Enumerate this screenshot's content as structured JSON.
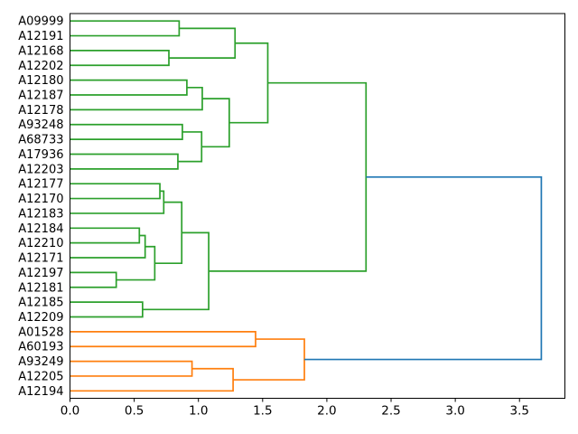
{
  "chart_data": {
    "type": "dendrogram",
    "title": "",
    "orientation": "right",
    "legend": "none",
    "grid": false,
    "leaves": [
      "A09999",
      "A12191",
      "A12168",
      "A12202",
      "A12180",
      "A12187",
      "A12178",
      "A93248",
      "A68733",
      "A17936",
      "A12203",
      "A12177",
      "A12170",
      "A12183",
      "A12184",
      "A12210",
      "A12171",
      "A12197",
      "A12181",
      "A12185",
      "A12209",
      "A01528",
      "A60193",
      "A93249",
      "A12205",
      "A12194"
    ],
    "merges": [
      {
        "id": "M1",
        "a": "L0",
        "b": "L1",
        "height": 0.85,
        "color": "green"
      },
      {
        "id": "M2",
        "a": "L2",
        "b": "L3",
        "height": 0.77,
        "color": "green"
      },
      {
        "id": "M3",
        "a": "M1",
        "b": "M2",
        "height": 1.285,
        "color": "green"
      },
      {
        "id": "M4",
        "a": "L4",
        "b": "L5",
        "height": 0.91,
        "color": "green"
      },
      {
        "id": "M5",
        "a": "M4",
        "b": "L6",
        "height": 1.03,
        "color": "green"
      },
      {
        "id": "M6",
        "a": "L7",
        "b": "L8",
        "height": 0.875,
        "color": "green"
      },
      {
        "id": "M7",
        "a": "L9",
        "b": "L10",
        "height": 0.84,
        "color": "green"
      },
      {
        "id": "M8",
        "a": "M6",
        "b": "M7",
        "height": 1.025,
        "color": "green"
      },
      {
        "id": "M9",
        "a": "M5",
        "b": "M8",
        "height": 1.24,
        "color": "green"
      },
      {
        "id": "M10",
        "a": "M3",
        "b": "M9",
        "height": 1.54,
        "color": "green"
      },
      {
        "id": "M12",
        "a": "L11",
        "b": "L12",
        "height": 0.7,
        "color": "green"
      },
      {
        "id": "M13",
        "a": "M12",
        "b": "L13",
        "height": 0.73,
        "color": "green"
      },
      {
        "id": "M14",
        "a": "L14",
        "b": "L15",
        "height": 0.54,
        "color": "green"
      },
      {
        "id": "M15",
        "a": "M14",
        "b": "L16",
        "height": 0.585,
        "color": "green"
      },
      {
        "id": "M16",
        "a": "L17",
        "b": "L18",
        "height": 0.36,
        "color": "green"
      },
      {
        "id": "M17",
        "a": "M15",
        "b": "M16",
        "height": 0.66,
        "color": "green"
      },
      {
        "id": "M18",
        "a": "M13",
        "b": "M17",
        "height": 0.87,
        "color": "green"
      },
      {
        "id": "M19",
        "a": "L19",
        "b": "L20",
        "height": 0.565,
        "color": "green"
      },
      {
        "id": "M20",
        "a": "M18",
        "b": "M19",
        "height": 1.08,
        "color": "green"
      },
      {
        "id": "M11",
        "a": "M10",
        "b": "M20",
        "height": 2.305,
        "color": "green"
      },
      {
        "id": "M21",
        "a": "L21",
        "b": "L22",
        "height": 1.445,
        "color": "orange"
      },
      {
        "id": "M22",
        "a": "L23",
        "b": "L24",
        "height": 0.95,
        "color": "orange"
      },
      {
        "id": "M23",
        "a": "M22",
        "b": "L25",
        "height": 1.27,
        "color": "orange"
      },
      {
        "id": "M24",
        "a": "M21",
        "b": "M23",
        "height": 1.825,
        "color": "orange"
      },
      {
        "id": "M25",
        "a": "M11",
        "b": "M24",
        "height": 3.67,
        "color": "blue"
      }
    ],
    "x_axis": {
      "ticks": [
        "0.0",
        "0.5",
        "1.0",
        "1.5",
        "2.0",
        "2.5",
        "3.0",
        "3.5"
      ],
      "values": [
        0,
        0.5,
        1.0,
        1.5,
        2.0,
        2.5,
        3.0,
        3.5
      ],
      "lim": [
        0,
        3.8535
      ]
    },
    "y_axis": {
      "tick_labels_source": "leaves"
    },
    "colors": {
      "green": "#2ca02c",
      "orange": "#ff7f0e",
      "blue": "#1f77b4",
      "spine": "#000000",
      "text": "#000000",
      "background": "#ffffff"
    }
  }
}
